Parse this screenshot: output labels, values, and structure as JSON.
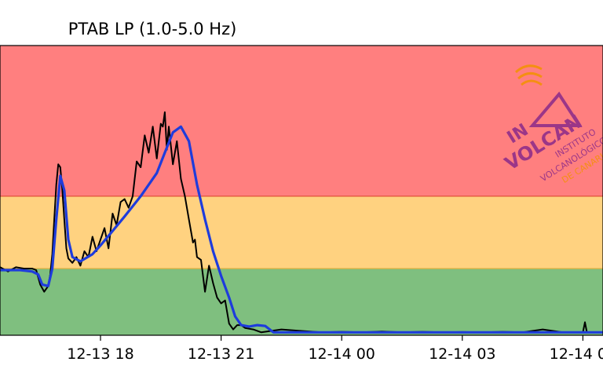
{
  "chart_data": {
    "type": "line",
    "title": "PTAB LP (1.0-5.0 Hz)",
    "xlabel": "",
    "ylabel": "",
    "x_unit": "hours since 2024-12-13 00:00",
    "xlim": [
      15.5,
      30.5
    ],
    "ylim": [
      0,
      100
    ],
    "grid": false,
    "legend": "none",
    "bands": [
      {
        "name": "green",
        "from": 0,
        "to": 23,
        "color": "#7fbf7f"
      },
      {
        "name": "yellow",
        "from": 23,
        "to": 48,
        "color": "#ffd280"
      },
      {
        "name": "red",
        "from": 48,
        "to": 100,
        "color": "#ff7f7f"
      }
    ],
    "xticks": [
      {
        "value": 18,
        "label": "12-13 18"
      },
      {
        "value": 21,
        "label": "12-13 21"
      },
      {
        "value": 24,
        "label": "12-14 00"
      },
      {
        "value": 27,
        "label": "12-14 03"
      },
      {
        "value": 30,
        "label": "12-14 06"
      }
    ],
    "series": [
      {
        "name": "raw",
        "color": "#000000",
        "x": [
          15.5,
          15.7,
          15.9,
          16.1,
          16.3,
          16.4,
          16.5,
          16.6,
          16.7,
          16.75,
          16.8,
          16.85,
          16.9,
          16.95,
          17.0,
          17.05,
          17.1,
          17.15,
          17.2,
          17.3,
          17.4,
          17.5,
          17.6,
          17.7,
          17.8,
          17.9,
          18.0,
          18.1,
          18.2,
          18.3,
          18.4,
          18.5,
          18.6,
          18.7,
          18.8,
          18.9,
          19.0,
          19.1,
          19.2,
          19.3,
          19.4,
          19.5,
          19.55,
          19.6,
          19.65,
          19.7,
          19.8,
          19.9,
          20.0,
          20.1,
          20.2,
          20.3,
          20.35,
          20.4,
          20.5,
          20.6,
          20.7,
          20.8,
          20.9,
          21.0,
          21.1,
          21.2,
          21.3,
          21.4,
          21.5,
          21.6,
          21.8,
          22.0,
          22.5,
          23.0,
          23.5,
          24.0,
          24.5,
          25.0,
          25.5,
          26.0,
          26.5,
          27.0,
          27.5,
          28.0,
          28.5,
          29.0,
          29.5,
          30.0,
          30.05,
          30.1,
          30.5
        ],
        "y": [
          23.5,
          22,
          23.5,
          23,
          23,
          22.5,
          17.5,
          15,
          17,
          21,
          28,
          40,
          52,
          59,
          58,
          50,
          40,
          30,
          26.5,
          25,
          27,
          24,
          29,
          27,
          34,
          29,
          33,
          37,
          30,
          42,
          38,
          46,
          47,
          44,
          48,
          60,
          58,
          69,
          63,
          72,
          61,
          73,
          72,
          77,
          64,
          72,
          59,
          67,
          54,
          48,
          40,
          32,
          33,
          27,
          26,
          15,
          24,
          18,
          13,
          11,
          12,
          4,
          2,
          3.5,
          3.5,
          2.5,
          2,
          1,
          2,
          1.5,
          1,
          1.2,
          1,
          1.3,
          1,
          1.2,
          1,
          1.1,
          1,
          1.2,
          1,
          2,
          1,
          1,
          4.5,
          1,
          1
        ]
      },
      {
        "name": "smoothed",
        "color": "#1e3cdc",
        "x": [
          15.5,
          16.0,
          16.3,
          16.45,
          16.55,
          16.7,
          16.8,
          16.9,
          17.0,
          17.1,
          17.2,
          17.3,
          17.5,
          17.8,
          18.0,
          18.3,
          18.6,
          19.0,
          19.4,
          19.6,
          19.8,
          20.0,
          20.2,
          20.4,
          20.6,
          20.8,
          21.0,
          21.2,
          21.35,
          21.5,
          21.7,
          21.9,
          22.1,
          22.3,
          24.0,
          26.0,
          28.0,
          30.0,
          30.5
        ],
        "y": [
          22.5,
          22.5,
          22,
          21,
          17.5,
          17,
          23,
          40,
          55,
          50,
          33,
          27,
          25.5,
          28,
          31,
          36,
          41,
          48,
          56,
          63,
          70,
          72,
          67,
          52,
          40,
          29,
          20.5,
          13,
          6.5,
          3.5,
          3,
          3.5,
          3.2,
          1,
          1,
          1,
          1,
          1,
          1
        ]
      }
    ],
    "logo": {
      "text_lines": [
        "IN",
        "VOLCAN",
        "INSTITUTO",
        "VOLCANOLÓGICO",
        "DE CANARIAS"
      ],
      "colors": {
        "purple": "#8a2a8a",
        "orange": "#f39200"
      }
    }
  }
}
